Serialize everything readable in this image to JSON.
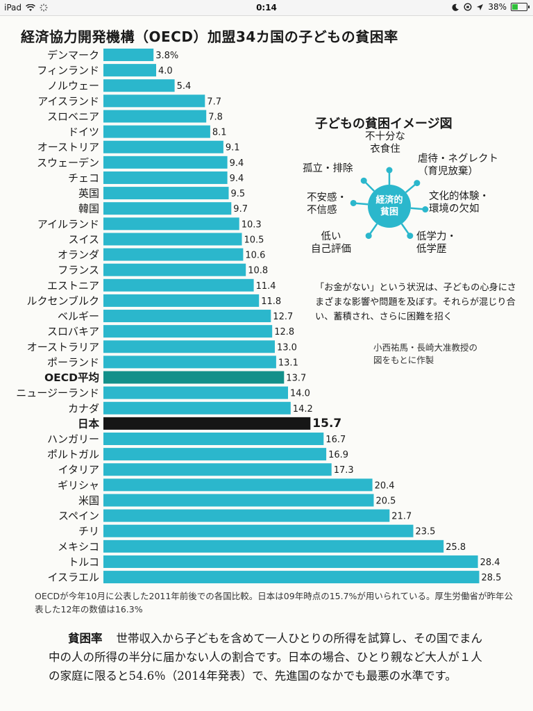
{
  "statusbar": {
    "device": "iPad",
    "time": "0:14",
    "battery": "38%",
    "battery_level": 0.38
  },
  "title": "経済協力開発機構（OECD）加盟34カ国の子どもの貧困率",
  "colors": {
    "bar": "#2bb7cc",
    "oecd_average": "#13908a",
    "japan": "#161616"
  },
  "chart_data": {
    "type": "bar",
    "orientation": "horizontal",
    "title": "経済協力開発機構（OECD）加盟34カ国の子どもの貧困率",
    "categories": [
      "デンマーク",
      "フィンランド",
      "ノルウェー",
      "アイスランド",
      "スロベニア",
      "ドイツ",
      "オーストリア",
      "スウェーデン",
      "チェコ",
      "英国",
      "韓国",
      "アイルランド",
      "スイス",
      "オランダ",
      "フランス",
      "エストニア",
      "ルクセンブルク",
      "ベルギー",
      "スロバキア",
      "オーストラリア",
      "ポーランド",
      "OECD平均",
      "ニュージーランド",
      "カナダ",
      "日本",
      "ハンガリー",
      "ポルトガル",
      "イタリア",
      "ギリシャ",
      "米国",
      "スペイン",
      "チリ",
      "メキシコ",
      "トルコ",
      "イスラエル"
    ],
    "values": [
      3.8,
      4.0,
      5.4,
      7.7,
      7.8,
      8.1,
      9.1,
      9.4,
      9.4,
      9.5,
      9.7,
      10.3,
      10.5,
      10.6,
      10.8,
      11.4,
      11.8,
      12.7,
      12.8,
      13.0,
      13.1,
      13.7,
      14.0,
      14.2,
      15.7,
      16.7,
      16.9,
      17.3,
      20.4,
      20.5,
      21.7,
      23.5,
      25.8,
      28.4,
      28.5
    ],
    "value_labels": [
      "3.8%",
      "4.0",
      "5.4",
      "7.7",
      "7.8",
      "8.1",
      "9.1",
      "9.4",
      "9.4",
      "9.5",
      "9.7",
      "10.3",
      "10.5",
      "10.6",
      "10.8",
      "11.4",
      "11.8",
      "12.7",
      "12.8",
      "13.0",
      "13.1",
      "13.7",
      "14.0",
      "14.2",
      "15.7",
      "16.7",
      "16.9",
      "17.3",
      "20.4",
      "20.5",
      "21.7",
      "23.5",
      "25.8",
      "28.4",
      "28.5"
    ],
    "highlight": {
      "OECD平均": "oecd_average",
      "日本": "japan"
    },
    "grid": false
  },
  "footnote": "OECDが今年10月に公表した2011年前後での各国比較。日本は09年時点の15.7%が用いられている。厚生労働省が昨年公表した12年の数値は16.3%",
  "inset": {
    "title": "子どもの貧困イメージ図",
    "hub": [
      "経済的",
      "貧困"
    ],
    "spokes": [
      "不十分な\n衣食住",
      "虐待・ネグレクト\n（育児放棄）",
      "文化的体験・\n環境の欠如",
      "低学力・\n低学歴",
      "低い\n自己評価",
      "不安感・\n不信感",
      "孤立・排除"
    ],
    "description": "「お金がない」という状況は、子どもの心身にさまざまな影響や問題を及ぼす。それらが混じり合い、蓄積され、さらに困難を招く",
    "credit": "小西祐馬・長崎大准教授の\n図をもとに作製"
  },
  "definition": {
    "term": "貧困率",
    "text": "世帯収入から子どもを含めて一人ひとりの所得を試算し、その国でまん中の人の所得の半分に届かない人の割合です。日本の場合、ひとり親など大人が１人の家庭に限ると54.6％（2014年発表）で、先進国のなかでも最悪の水準です。"
  }
}
